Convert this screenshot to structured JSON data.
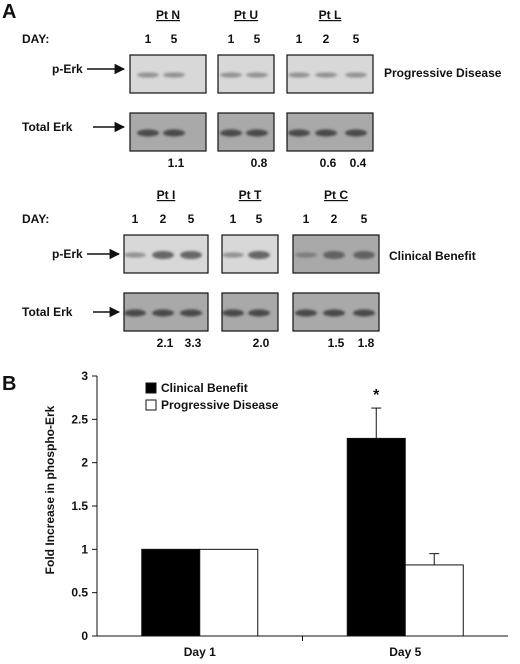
{
  "figure": {
    "panel_a_label": "A",
    "panel_b_label": "B",
    "row_day_label": "DAY:",
    "row_perk_label": "p-Erk",
    "row_total_label": "Total Erk",
    "group_top_label": "Progressive Disease",
    "group_bottom_label": "Clinical Benefit",
    "top_patients": [
      {
        "name": "Pt N",
        "days": [
          "1",
          "5"
        ],
        "ratios": [
          "1.1"
        ]
      },
      {
        "name": "Pt U",
        "days": [
          "1",
          "5"
        ],
        "ratios": [
          "0.8"
        ]
      },
      {
        "name": "Pt L",
        "days": [
          "1",
          "2",
          "5"
        ],
        "ratios": [
          "0.6",
          "0.4"
        ]
      }
    ],
    "bottom_patients": [
      {
        "name": "Pt I",
        "days": [
          "1",
          "2",
          "5"
        ],
        "ratios": [
          "2.1",
          "3.3"
        ]
      },
      {
        "name": "Pt T",
        "days": [
          "1",
          "5"
        ],
        "ratios": [
          "2.0"
        ]
      },
      {
        "name": "Pt C",
        "days": [
          "1",
          "2",
          "5"
        ],
        "ratios": [
          "1.5",
          "1.8"
        ]
      }
    ],
    "colors": {
      "blot_light": "#d8d8d8",
      "blot_dark": "#a9a9a9",
      "band": "#5a5a5a",
      "bar_clinical": "#000000",
      "bar_progressive": "#ffffff"
    }
  },
  "chart_data": {
    "type": "bar",
    "categories": [
      "Day 1",
      "Day 5"
    ],
    "series": [
      {
        "name": "Clinical Benefit",
        "values": [
          1.0,
          2.28
        ],
        "errors": [
          0,
          0.35
        ],
        "color": "#000000"
      },
      {
        "name": "Progressive Disease",
        "values": [
          1.0,
          0.82
        ],
        "errors": [
          0,
          0.13
        ],
        "color": "#ffffff"
      }
    ],
    "ylabel": "Fold Increase in phospho-Erk",
    "ylim": [
      0,
      3
    ],
    "yticks": [
      "0",
      "0.5",
      "1",
      "1.5",
      "2",
      "2.5",
      "3"
    ],
    "legend_position": "top-left",
    "annotations": [
      {
        "category": "Day 5",
        "series": "Clinical Benefit",
        "text": "*"
      }
    ]
  }
}
